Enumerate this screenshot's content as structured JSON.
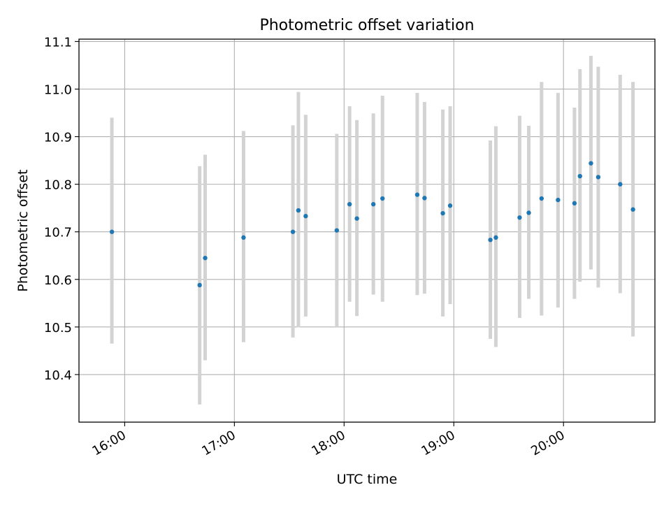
{
  "chart_data": {
    "type": "scatter",
    "title": "Photometric offset variation",
    "xlabel": "UTC time",
    "ylabel": "Photometric offset",
    "x_unit": "hour of day (UTC)",
    "xlim": [
      "15:35",
      "20:50"
    ],
    "ylim": [
      10.3,
      11.105
    ],
    "x_ticks": [
      "16:00",
      "17:00",
      "18:00",
      "19:00",
      "20:00"
    ],
    "y_ticks": [
      "10.4",
      "10.5",
      "10.6",
      "10.7",
      "10.8",
      "10.9",
      "11.0",
      "11.1"
    ],
    "grid": true,
    "error_bar_color": "#d3d3d3",
    "point_color": "#1f77b4",
    "points": [
      {
        "t": "15:53",
        "y": 10.7,
        "lo": 10.465,
        "hi": 10.94
      },
      {
        "t": "16:41",
        "y": 10.588,
        "lo": 10.337,
        "hi": 10.838
      },
      {
        "t": "16:44",
        "y": 10.645,
        "lo": 10.43,
        "hi": 10.862
      },
      {
        "t": "17:05",
        "y": 10.688,
        "lo": 10.468,
        "hi": 10.912
      },
      {
        "t": "17:32",
        "y": 10.7,
        "lo": 10.478,
        "hi": 10.924
      },
      {
        "t": "17:35",
        "y": 10.745,
        "lo": 10.499,
        "hi": 10.994
      },
      {
        "t": "17:39",
        "y": 10.733,
        "lo": 10.522,
        "hi": 10.946
      },
      {
        "t": "17:56",
        "y": 10.703,
        "lo": 10.5,
        "hi": 10.906
      },
      {
        "t": "18:03",
        "y": 10.758,
        "lo": 10.553,
        "hi": 10.964
      },
      {
        "t": "18:07",
        "y": 10.728,
        "lo": 10.523,
        "hi": 10.935
      },
      {
        "t": "18:16",
        "y": 10.758,
        "lo": 10.568,
        "hi": 10.949
      },
      {
        "t": "18:21",
        "y": 10.77,
        "lo": 10.553,
        "hi": 10.986
      },
      {
        "t": "18:40",
        "y": 10.778,
        "lo": 10.567,
        "hi": 10.992
      },
      {
        "t": "18:44",
        "y": 10.771,
        "lo": 10.57,
        "hi": 10.973
      },
      {
        "t": "18:54",
        "y": 10.739,
        "lo": 10.522,
        "hi": 10.957
      },
      {
        "t": "18:58",
        "y": 10.755,
        "lo": 10.548,
        "hi": 10.964
      },
      {
        "t": "19:20",
        "y": 10.683,
        "lo": 10.475,
        "hi": 10.892
      },
      {
        "t": "19:23",
        "y": 10.688,
        "lo": 10.458,
        "hi": 10.922
      },
      {
        "t": "19:36",
        "y": 10.73,
        "lo": 10.519,
        "hi": 10.944
      },
      {
        "t": "19:41",
        "y": 10.74,
        "lo": 10.559,
        "hi": 10.923
      },
      {
        "t": "19:48",
        "y": 10.77,
        "lo": 10.524,
        "hi": 11.015
      },
      {
        "t": "19:57",
        "y": 10.767,
        "lo": 10.541,
        "hi": 10.992
      },
      {
        "t": "20:06",
        "y": 10.76,
        "lo": 10.559,
        "hi": 10.961
      },
      {
        "t": "20:09",
        "y": 10.817,
        "lo": 10.595,
        "hi": 11.042
      },
      {
        "t": "20:15",
        "y": 10.844,
        "lo": 10.621,
        "hi": 11.07
      },
      {
        "t": "20:19",
        "y": 10.815,
        "lo": 10.583,
        "hi": 11.047
      },
      {
        "t": "20:31",
        "y": 10.8,
        "lo": 10.571,
        "hi": 11.03
      },
      {
        "t": "20:38",
        "y": 10.747,
        "lo": 10.48,
        "hi": 11.015
      }
    ]
  }
}
